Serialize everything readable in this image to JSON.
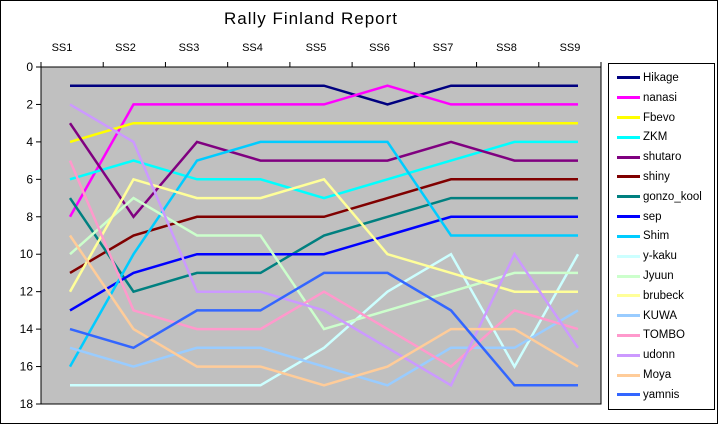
{
  "window": {
    "background": "#FFFFFF",
    "border_color": "#000000"
  },
  "chart_data": {
    "type": "line",
    "title": "Rally Finland Report",
    "xlabel": "",
    "ylabel": "",
    "categories": [
      "SS1",
      "SS2",
      "SS3",
      "SS4",
      "SS5",
      "SS6",
      "SS7",
      "SS8",
      "SS9"
    ],
    "y_axis": {
      "min": 0,
      "max": 18,
      "tick_step": 2,
      "inverted": true,
      "tick_labels": [
        "0",
        "2",
        "4",
        "6",
        "8",
        "10",
        "12",
        "14",
        "16",
        "18"
      ]
    },
    "grid": "off",
    "plot_background": "#C0C0C0",
    "legend_position": "right",
    "series": [
      {
        "name": "Hikage",
        "color": "#000080",
        "values": [
          1,
          1,
          1,
          1,
          1,
          2,
          1,
          1,
          1
        ]
      },
      {
        "name": "nanasi",
        "color": "#FF00FF",
        "values": [
          8,
          2,
          2,
          2,
          2,
          1,
          2,
          2,
          2
        ]
      },
      {
        "name": "Fbevo",
        "color": "#FFFF00",
        "values": [
          4,
          3,
          3,
          3,
          3,
          3,
          3,
          3,
          3
        ]
      },
      {
        "name": "ZKM",
        "color": "#00FFFF",
        "values": [
          6,
          5,
          6,
          6,
          7,
          6,
          5,
          4,
          4
        ]
      },
      {
        "name": "shutaro",
        "color": "#800080",
        "values": [
          3,
          8,
          4,
          5,
          5,
          5,
          4,
          5,
          5
        ]
      },
      {
        "name": "shiny",
        "color": "#800000",
        "values": [
          11,
          9,
          8,
          8,
          8,
          7,
          6,
          6,
          6
        ]
      },
      {
        "name": "gonzo_kool",
        "color": "#008080",
        "values": [
          7,
          12,
          11,
          11,
          9,
          8,
          7,
          7,
          7
        ]
      },
      {
        "name": "sep",
        "color": "#0000FF",
        "values": [
          13,
          11,
          10,
          10,
          10,
          9,
          8,
          8,
          8
        ]
      },
      {
        "name": "Shim",
        "color": "#00CCFF",
        "values": [
          16,
          10,
          5,
          4,
          4,
          4,
          9,
          9,
          9
        ]
      },
      {
        "name": "y-kaku",
        "color": "#CCFFFF",
        "values": [
          17,
          17,
          17,
          17,
          15,
          12,
          10,
          16,
          10
        ]
      },
      {
        "name": "Jyuun",
        "color": "#CCFFCC",
        "values": [
          10,
          7,
          9,
          9,
          14,
          13,
          12,
          11,
          11
        ]
      },
      {
        "name": "brubeck",
        "color": "#FFFF99",
        "values": [
          12,
          6,
          7,
          7,
          6,
          10,
          11,
          12,
          12
        ]
      },
      {
        "name": "KUWA",
        "color": "#99CCFF",
        "values": [
          15,
          16,
          15,
          15,
          16,
          17,
          15,
          15,
          13
        ]
      },
      {
        "name": "TOMBO",
        "color": "#FF99CC",
        "values": [
          5,
          13,
          14,
          14,
          12,
          14,
          16,
          13,
          14
        ]
      },
      {
        "name": "udonn",
        "color": "#CC99FF",
        "values": [
          2,
          4,
          12,
          12,
          13,
          15,
          17,
          10,
          15
        ]
      },
      {
        "name": "Moya",
        "color": "#FFCC99",
        "values": [
          9,
          14,
          16,
          16,
          17,
          16,
          14,
          14,
          16
        ]
      },
      {
        "name": "yamnis",
        "color": "#3366FF",
        "values": [
          14,
          15,
          13,
          13,
          11,
          11,
          13,
          17,
          17
        ]
      }
    ]
  }
}
